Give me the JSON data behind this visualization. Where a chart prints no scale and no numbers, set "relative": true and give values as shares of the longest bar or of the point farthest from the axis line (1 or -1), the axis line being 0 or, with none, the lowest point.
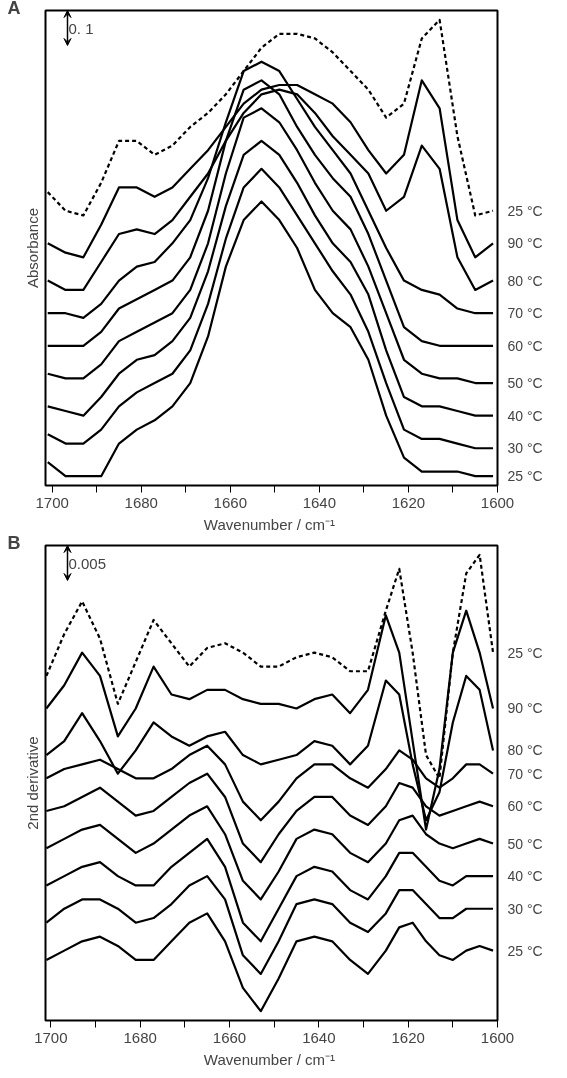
{
  "chart_data": [
    {
      "type": "line",
      "title": "A",
      "xlabel": "Wavenumber  / cm⁻¹",
      "ylabel": "Absorbance",
      "relative": true,
      "grid": false,
      "legend": false,
      "marker": "none",
      "xlim": [
        1701.5,
        1600
      ],
      "xticks": [
        1700,
        {
          "value": 1690,
          "label": null
        },
        1680,
        {
          "value": 1670,
          "label": null
        },
        1660,
        {
          "value": 1650,
          "label": null
        },
        1640,
        {
          "value": 1630,
          "label": null
        },
        1620,
        {
          "value": 1610,
          "label": null
        },
        1600
      ],
      "x": [
        1701,
        1697,
        1693,
        1689,
        1685,
        1681,
        1677,
        1673,
        1669,
        1665,
        1661,
        1657,
        1653,
        1649,
        1645,
        1641,
        1637,
        1633,
        1629,
        1625,
        1621,
        1617,
        1613,
        1609,
        1605,
        1601
      ],
      "annotations": [
        "0. 1"
      ],
      "series": [
        {
          "name": "25 °C",
          "color": "#000000",
          "line_style": "dashed",
          "values": [
            0.63,
            0.59,
            0.58,
            0.65,
            0.74,
            0.74,
            0.71,
            0.73,
            0.77,
            0.8,
            0.84,
            0.89,
            0.94,
            0.97,
            0.97,
            0.96,
            0.93,
            0.89,
            0.85,
            0.79,
            0.82,
            0.96,
            1.0,
            0.75,
            0.58,
            0.59
          ]
        },
        {
          "name": "90 °C",
          "color": "#000000",
          "line_style": "solid",
          "values": [
            0.52,
            0.5,
            0.49,
            0.56,
            0.64,
            0.64,
            0.62,
            0.64,
            0.68,
            0.72,
            0.77,
            0.82,
            0.85,
            0.86,
            0.86,
            0.84,
            0.82,
            0.78,
            0.72,
            0.67,
            0.71,
            0.87,
            0.81,
            0.57,
            0.49,
            0.52
          ]
        },
        {
          "name": "80 °C",
          "color": "#000000",
          "line_style": "solid",
          "values": [
            0.44,
            0.42,
            0.42,
            0.48,
            0.54,
            0.55,
            0.54,
            0.57,
            0.62,
            0.67,
            0.74,
            0.8,
            0.84,
            0.85,
            0.84,
            0.8,
            0.75,
            0.71,
            0.67,
            0.59,
            0.62,
            0.73,
            0.68,
            0.49,
            0.42,
            0.44
          ]
        },
        {
          "name": "70 °C",
          "color": "#000000",
          "line_style": "solid",
          "values": [
            0.37,
            0.37,
            0.36,
            0.39,
            0.44,
            0.47,
            0.48,
            0.52,
            0.57,
            0.66,
            0.78,
            0.89,
            0.91,
            0.89,
            0.83,
            0.77,
            0.72,
            0.67,
            0.59,
            0.51,
            0.44,
            0.42,
            0.41,
            0.38,
            0.37,
            0.37
          ]
        },
        {
          "name": "60 °C",
          "color": "#000000",
          "line_style": "solid",
          "values": [
            0.3,
            0.3,
            0.3,
            0.33,
            0.38,
            0.4,
            0.42,
            0.44,
            0.49,
            0.59,
            0.74,
            0.85,
            0.87,
            0.84,
            0.77,
            0.71,
            0.66,
            0.62,
            0.54,
            0.44,
            0.34,
            0.31,
            0.3,
            0.3,
            0.3,
            0.3
          ]
        },
        {
          "name": "50 °C",
          "color": "#000000",
          "line_style": "solid",
          "values": [
            0.24,
            0.23,
            0.23,
            0.26,
            0.31,
            0.33,
            0.35,
            0.37,
            0.42,
            0.52,
            0.67,
            0.79,
            0.81,
            0.78,
            0.72,
            0.65,
            0.59,
            0.55,
            0.47,
            0.37,
            0.27,
            0.24,
            0.23,
            0.23,
            0.22,
            0.22
          ]
        },
        {
          "name": "40 °C",
          "color": "#000000",
          "line_style": "solid",
          "values": [
            0.17,
            0.16,
            0.15,
            0.19,
            0.24,
            0.27,
            0.28,
            0.31,
            0.36,
            0.46,
            0.6,
            0.71,
            0.74,
            0.71,
            0.65,
            0.58,
            0.52,
            0.48,
            0.41,
            0.29,
            0.19,
            0.17,
            0.17,
            0.16,
            0.15,
            0.15
          ]
        },
        {
          "name": "30 °C",
          "color": "#000000",
          "line_style": "solid",
          "values": [
            0.11,
            0.09,
            0.09,
            0.12,
            0.17,
            0.2,
            0.22,
            0.24,
            0.29,
            0.39,
            0.53,
            0.64,
            0.68,
            0.64,
            0.58,
            0.52,
            0.46,
            0.41,
            0.33,
            0.22,
            0.12,
            0.1,
            0.1,
            0.09,
            0.08,
            0.08
          ]
        },
        {
          "name": "25 °C",
          "color": "#000000",
          "line_style": "solid",
          "values": [
            0.05,
            0.02,
            0.02,
            0.02,
            0.09,
            0.12,
            0.14,
            0.17,
            0.22,
            0.32,
            0.47,
            0.57,
            0.61,
            0.57,
            0.51,
            0.42,
            0.37,
            0.34,
            0.27,
            0.15,
            0.06,
            0.03,
            0.03,
            0.03,
            0.02,
            0.02
          ]
        }
      ]
    },
    {
      "type": "line",
      "title": "B",
      "xlabel": "Wavenumber  / cm⁻¹",
      "ylabel": "2nd derivative",
      "relative": true,
      "grid": false,
      "legend": false,
      "marker": "none",
      "xlim": [
        1701.2,
        1600
      ],
      "xticks": [
        1700,
        {
          "value": 1690,
          "label": null
        },
        1680,
        {
          "value": 1670,
          "label": null
        },
        1660,
        {
          "value": 1650,
          "label": null
        },
        1640,
        {
          "value": 1630,
          "label": null
        },
        1620,
        {
          "value": 1610,
          "label": null
        },
        1600
      ],
      "x": [
        1701,
        1697,
        1693,
        1689,
        1685,
        1681,
        1677,
        1673,
        1669,
        1665,
        1661,
        1657,
        1653,
        1649,
        1645,
        1641,
        1637,
        1633,
        1629,
        1625,
        1622,
        1619,
        1616,
        1613,
        1610,
        1607,
        1604,
        1601
      ],
      "annotations": [
        "0.005"
      ],
      "series": [
        {
          "name": "25 °C",
          "color": "#000000",
          "line_style": "dashed",
          "values": [
            0.74,
            0.83,
            0.9,
            0.82,
            0.68,
            0.77,
            0.86,
            0.81,
            0.76,
            0.8,
            0.81,
            0.79,
            0.76,
            0.76,
            0.78,
            0.79,
            0.78,
            0.75,
            0.75,
            0.88,
            0.97,
            0.79,
            0.57,
            0.52,
            0.79,
            0.96,
            1.0,
            0.79
          ]
        },
        {
          "name": "90 °C",
          "color": "#000000",
          "line_style": "solid",
          "values": [
            0.67,
            0.72,
            0.79,
            0.74,
            0.61,
            0.67,
            0.76,
            0.7,
            0.69,
            0.71,
            0.71,
            0.69,
            0.68,
            0.68,
            0.67,
            0.69,
            0.7,
            0.66,
            0.71,
            0.87,
            0.79,
            0.6,
            0.41,
            0.54,
            0.79,
            0.88,
            0.79,
            0.67
          ]
        },
        {
          "name": "80 °C",
          "color": "#000000",
          "line_style": "solid",
          "values": [
            0.57,
            0.6,
            0.66,
            0.6,
            0.53,
            0.58,
            0.64,
            0.61,
            0.59,
            0.61,
            0.62,
            0.57,
            0.55,
            0.56,
            0.57,
            0.6,
            0.59,
            0.55,
            0.59,
            0.73,
            0.7,
            0.55,
            0.43,
            0.49,
            0.64,
            0.74,
            0.71,
            0.58
          ]
        },
        {
          "name": "70 °C",
          "color": "#000000",
          "line_style": "solid",
          "values": [
            0.52,
            0.54,
            0.55,
            0.56,
            0.54,
            0.52,
            0.52,
            0.54,
            0.57,
            0.59,
            0.55,
            0.47,
            0.43,
            0.47,
            0.52,
            0.55,
            0.55,
            0.52,
            0.5,
            0.54,
            0.58,
            0.56,
            0.52,
            0.5,
            0.52,
            0.55,
            0.55,
            0.53
          ]
        },
        {
          "name": "60 °C",
          "color": "#000000",
          "line_style": "solid",
          "values": [
            0.45,
            0.46,
            0.48,
            0.5,
            0.47,
            0.44,
            0.45,
            0.48,
            0.51,
            0.53,
            0.48,
            0.38,
            0.34,
            0.4,
            0.45,
            0.48,
            0.48,
            0.44,
            0.42,
            0.46,
            0.51,
            0.5,
            0.46,
            0.44,
            0.45,
            0.46,
            0.47,
            0.46
          ]
        },
        {
          "name": "50 °C",
          "color": "#000000",
          "line_style": "solid",
          "values": [
            0.37,
            0.39,
            0.41,
            0.42,
            0.39,
            0.36,
            0.38,
            0.41,
            0.44,
            0.46,
            0.4,
            0.3,
            0.26,
            0.32,
            0.39,
            0.41,
            0.4,
            0.36,
            0.34,
            0.38,
            0.43,
            0.44,
            0.4,
            0.38,
            0.37,
            0.38,
            0.39,
            0.38
          ]
        },
        {
          "name": "40 °C",
          "color": "#000000",
          "line_style": "solid",
          "values": [
            0.29,
            0.31,
            0.33,
            0.34,
            0.31,
            0.29,
            0.29,
            0.33,
            0.36,
            0.39,
            0.33,
            0.21,
            0.17,
            0.24,
            0.31,
            0.33,
            0.32,
            0.28,
            0.26,
            0.31,
            0.36,
            0.36,
            0.33,
            0.3,
            0.29,
            0.31,
            0.31,
            0.31
          ]
        },
        {
          "name": "30 °C",
          "color": "#000000",
          "line_style": "solid",
          "values": [
            0.21,
            0.24,
            0.26,
            0.26,
            0.24,
            0.21,
            0.22,
            0.25,
            0.29,
            0.31,
            0.26,
            0.14,
            0.1,
            0.17,
            0.25,
            0.26,
            0.25,
            0.21,
            0.19,
            0.23,
            0.28,
            0.28,
            0.25,
            0.22,
            0.22,
            0.24,
            0.24,
            0.24
          ]
        },
        {
          "name": "25 °C",
          "color": "#000000",
          "line_style": "solid",
          "values": [
            0.13,
            0.15,
            0.17,
            0.18,
            0.16,
            0.13,
            0.13,
            0.17,
            0.21,
            0.23,
            0.17,
            0.07,
            0.02,
            0.09,
            0.17,
            0.18,
            0.17,
            0.13,
            0.1,
            0.15,
            0.2,
            0.21,
            0.17,
            0.14,
            0.13,
            0.15,
            0.16,
            0.15
          ]
        }
      ]
    }
  ]
}
